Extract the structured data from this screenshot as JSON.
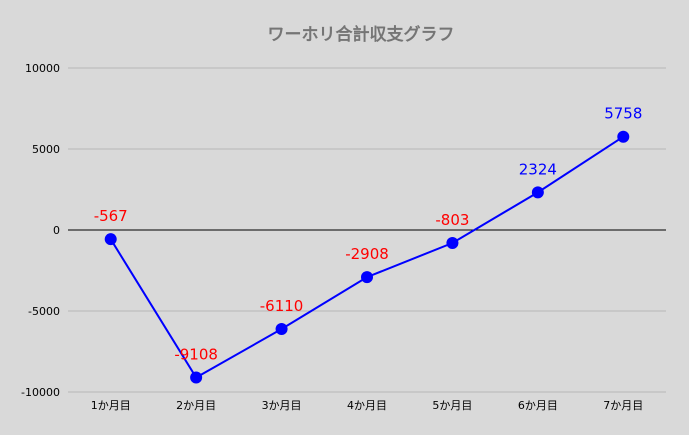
{
  "chart_data": {
    "type": "line",
    "title": "ワーホリ合計収支グラフ",
    "xlabel": "",
    "ylabel": "",
    "categories": [
      "1か月目",
      "2か月目",
      "3か月目",
      "4か月目",
      "5か月目",
      "6か月目",
      "7か月目"
    ],
    "series": [
      {
        "values": [
          -567,
          -9108,
          -6110,
          -2908,
          -803,
          2324,
          5758
        ]
      }
    ],
    "data_labels": [
      "-567",
      "-9108",
      "-6110",
      "-2908",
      "-803",
      "2324",
      "5758"
    ],
    "ylim": [
      -10000,
      10000
    ],
    "yticks": [
      "10000",
      "5000",
      "0",
      "-5000",
      "-10000"
    ],
    "grid": true,
    "legend": "none",
    "colors": {
      "line": "#0000ff",
      "marker": "#0000ff",
      "negative_label": "#ff0000",
      "positive_label": "#0000ff",
      "gridline": "#b7b7b7",
      "zero_line": "#000000",
      "background": "#d9d9d9",
      "title": "#757575"
    }
  }
}
